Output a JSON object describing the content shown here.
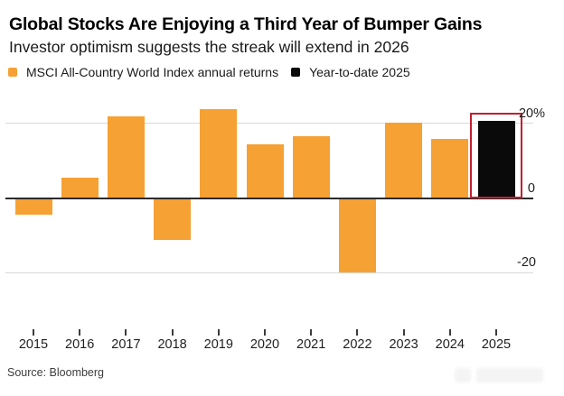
{
  "header": {
    "title": "Global Stocks Are Enjoying a Third Year of Bumper Gains",
    "subtitle": "Investor optimism suggests the streak will extend in 2026"
  },
  "legend": {
    "items": [
      {
        "label": "MSCI All-Country World Index annual returns",
        "color": "#F6A134"
      },
      {
        "label": "Year-to-date 2025",
        "color": "#0a0a0a"
      }
    ]
  },
  "chart_data": {
    "type": "bar",
    "title": "Global Stocks Are Enjoying a Third Year of Bumper Gains",
    "subtitle": "Investor optimism suggests the streak will extend in 2026",
    "categories": [
      "2015",
      "2016",
      "2017",
      "2018",
      "2019",
      "2020",
      "2021",
      "2022",
      "2023",
      "2024",
      "2025"
    ],
    "series": [
      {
        "name": "MSCI All-Country World Index annual returns",
        "color": "#F6A134",
        "values": [
          -4.4,
          5.4,
          21.7,
          -11.1,
          23.7,
          14.2,
          16.5,
          -19.9,
          20.0,
          15.6,
          null
        ]
      },
      {
        "name": "Year-to-date 2025",
        "color": "#0a0a0a",
        "values": [
          null,
          null,
          null,
          null,
          null,
          null,
          null,
          null,
          null,
          null,
          20.5
        ]
      }
    ],
    "unit": "%",
    "yticks": [
      {
        "value": 20,
        "label": "20%"
      },
      {
        "value": 0,
        "label": "0"
      },
      {
        "value": -20,
        "label": "-20"
      }
    ],
    "ylim": [
      -22,
      26
    ],
    "grid": "horizontal",
    "legend_position": "top-left",
    "highlight": {
      "category": "2025",
      "box_color": "#c11f30"
    }
  },
  "footer": {
    "source": "Source: Bloomberg"
  },
  "colors": {
    "bar_orange": "#F6A134",
    "bar_black": "#0a0a0a",
    "highlight_red": "#c11f30",
    "gridline": "#d9d9d9",
    "zero_line": "#2b2b2b",
    "background": "#ffffff"
  }
}
